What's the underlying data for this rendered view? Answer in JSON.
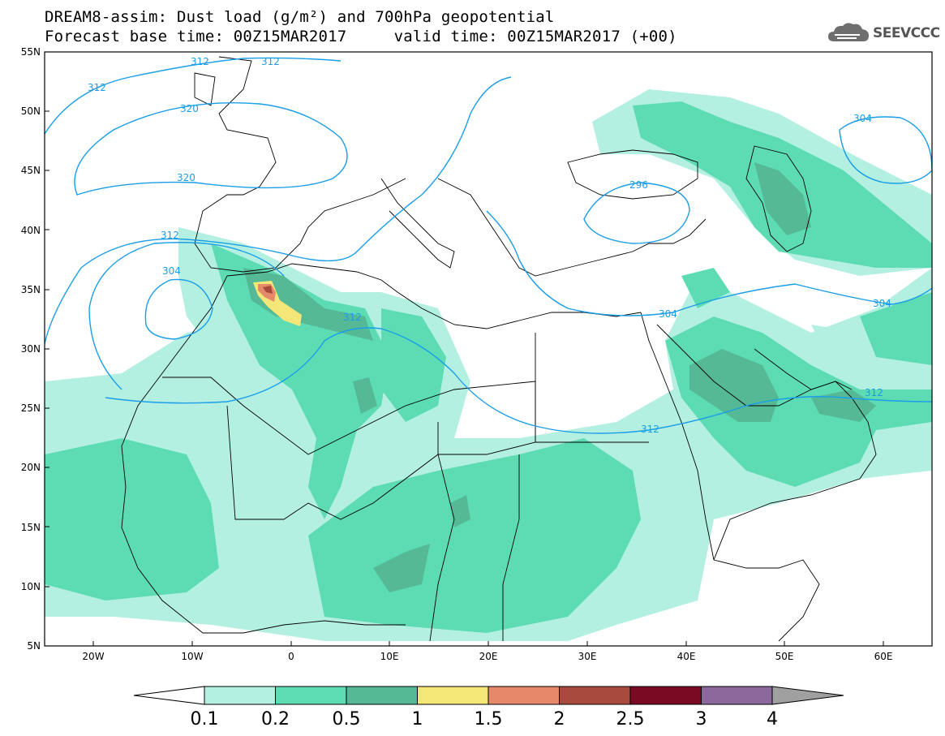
{
  "title": {
    "line1": "DREAM8-assim: Dust load (g/m²) and 700hPa geopotential",
    "line2": "Forecast base time: 00Z15MAR2017     valid time: 00Z15MAR2017 (+00)"
  },
  "logo": {
    "text": "SEEVCCC",
    "icon": "cloud-icon"
  },
  "map": {
    "lon_labels": [
      "20W",
      "10W",
      "0",
      "10E",
      "20E",
      "30E",
      "40E",
      "50E",
      "60E"
    ],
    "lat_labels": [
      "55N",
      "50N",
      "45N",
      "40N",
      "35N",
      "30N",
      "25N",
      "20N",
      "15N",
      "10N",
      "5N"
    ],
    "contour_labels": [
      "312",
      "312",
      "312",
      "320",
      "320",
      "312",
      "304",
      "312",
      "312",
      "296",
      "304",
      "304",
      "304",
      "312"
    ],
    "contour_color": "#1a9ee8"
  },
  "colorbar": {
    "labels": [
      "0.1",
      "0.2",
      "0.5",
      "1",
      "1.5",
      "2",
      "2.5",
      "3",
      "4"
    ],
    "colors": [
      "#b4f0e1",
      "#5ddcb4",
      "#55b996",
      "#f5e678",
      "#e6896b",
      "#a84a3c",
      "#7a0a23",
      "#8c699c",
      "#a0a0a0"
    ]
  }
}
